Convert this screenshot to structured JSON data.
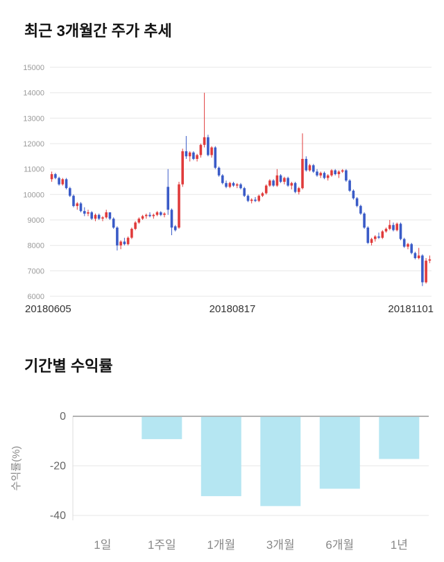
{
  "price_section": {
    "title": "최근 3개월간 주가 추세"
  },
  "returns_section": {
    "title": "기간별 수익률"
  },
  "chart_data": [
    {
      "type": "candlestick",
      "title": "최근 3개월간 주가 추세",
      "x_labels": [
        "20180605",
        "20180817",
        "20181101"
      ],
      "y_ticks": [
        6000,
        7000,
        8000,
        9000,
        10000,
        11000,
        12000,
        13000,
        14000,
        15000
      ],
      "ylim": [
        6000,
        15000
      ],
      "grid": true,
      "up_color": "#e03b3b",
      "down_color": "#3a5bc7",
      "grid_color": "#e7e7e7",
      "tick_color": "#999999",
      "xlabel_color": "#333333",
      "ohlc": [
        [
          10600,
          10900,
          10500,
          10800
        ],
        [
          10800,
          10850,
          10600,
          10650
        ],
        [
          10650,
          10700,
          10350,
          10400
        ],
        [
          10400,
          10650,
          10350,
          10600
        ],
        [
          10600,
          10650,
          10200,
          10250
        ],
        [
          10250,
          10300,
          9900,
          9950
        ],
        [
          9950,
          10000,
          9500,
          9550
        ],
        [
          9550,
          9700,
          9400,
          9650
        ],
        [
          9650,
          9700,
          9300,
          9350
        ],
        [
          9350,
          9500,
          9150,
          9250
        ],
        [
          9250,
          9400,
          9150,
          9300
        ],
        [
          9300,
          9350,
          9000,
          9050
        ],
        [
          9050,
          9250,
          8950,
          9200
        ],
        [
          9200,
          9250,
          9000,
          9050
        ],
        [
          9050,
          9150,
          8950,
          9100
        ],
        [
          9100,
          9400,
          9050,
          9300
        ],
        [
          9300,
          9300,
          9000,
          9050
        ],
        [
          9050,
          9100,
          8650,
          8700
        ],
        [
          8700,
          8750,
          7800,
          8000
        ],
        [
          8000,
          8200,
          7850,
          8150
        ],
        [
          8150,
          8300,
          8000,
          8050
        ],
        [
          8050,
          8350,
          8000,
          8300
        ],
        [
          8300,
          8700,
          8250,
          8650
        ],
        [
          8650,
          8950,
          8600,
          8900
        ],
        [
          8900,
          9100,
          8850,
          9050
        ],
        [
          9050,
          9200,
          9000,
          9150
        ],
        [
          9150,
          9250,
          9050,
          9200
        ],
        [
          9200,
          9300,
          9100,
          9150
        ],
        [
          9150,
          9250,
          9050,
          9200
        ],
        [
          9200,
          9350,
          9150,
          9300
        ],
        [
          9300,
          9350,
          9150,
          9200
        ],
        [
          9200,
          9300,
          9100,
          9250
        ],
        [
          10300,
          11000,
          9200,
          9400
        ],
        [
          9400,
          9450,
          8400,
          8700
        ],
        [
          8750,
          8800,
          8550,
          8600
        ],
        [
          8700,
          10500,
          8650,
          10400
        ],
        [
          10400,
          11800,
          10300,
          11700
        ],
        [
          11700,
          12300,
          11400,
          11500
        ],
        [
          11500,
          11700,
          11300,
          11650
        ],
        [
          11650,
          11700,
          11350,
          11400
        ],
        [
          11400,
          11600,
          11300,
          11550
        ],
        [
          11550,
          12000,
          11450,
          11950
        ],
        [
          11950,
          14000,
          11850,
          12250
        ],
        [
          12250,
          12350,
          11500,
          11550
        ],
        [
          11550,
          11900,
          11450,
          11850
        ],
        [
          11850,
          11900,
          11000,
          11050
        ],
        [
          11050,
          11100,
          10700,
          10750
        ],
        [
          10750,
          10800,
          10400,
          10450
        ],
        [
          10450,
          10550,
          10250,
          10300
        ],
        [
          10300,
          10500,
          10250,
          10450
        ],
        [
          10450,
          10500,
          10300,
          10350
        ],
        [
          10350,
          10450,
          10250,
          10400
        ],
        [
          10400,
          10450,
          10200,
          10250
        ],
        [
          10250,
          10300,
          9900,
          9950
        ],
        [
          9950,
          10000,
          9700,
          9750
        ],
        [
          9750,
          9850,
          9650,
          9800
        ],
        [
          9800,
          9900,
          9700,
          9750
        ],
        [
          9750,
          10000,
          9700,
          9950
        ],
        [
          9950,
          10100,
          9900,
          10050
        ],
        [
          10050,
          10400,
          10000,
          10350
        ],
        [
          10350,
          10600,
          10300,
          10550
        ],
        [
          10550,
          10600,
          10300,
          10350
        ],
        [
          10350,
          11000,
          10300,
          10750
        ],
        [
          10750,
          10800,
          10450,
          10500
        ],
        [
          10500,
          10700,
          10400,
          10650
        ],
        [
          10650,
          10700,
          10300,
          10350
        ],
        [
          10350,
          10500,
          10200,
          10450
        ],
        [
          10450,
          10500,
          10050,
          10100
        ],
        [
          10100,
          10300,
          10000,
          10250
        ],
        [
          10250,
          12400,
          10200,
          11400
        ],
        [
          11400,
          11500,
          10900,
          10950
        ],
        [
          10950,
          11200,
          10900,
          11150
        ],
        [
          11150,
          11200,
          10850,
          10900
        ],
        [
          10900,
          11000,
          10700,
          10750
        ],
        [
          10750,
          10900,
          10650,
          10850
        ],
        [
          10850,
          10900,
          10600,
          10650
        ],
        [
          10650,
          10800,
          10550,
          10750
        ],
        [
          10750,
          11000,
          10700,
          10950
        ],
        [
          10950,
          11000,
          10750,
          10800
        ],
        [
          10800,
          10950,
          10650,
          10900
        ],
        [
          10900,
          11000,
          10850,
          10950
        ],
        [
          10950,
          11000,
          10500,
          10550
        ],
        [
          10550,
          10600,
          10100,
          10150
        ],
        [
          10150,
          10200,
          9800,
          9850
        ],
        [
          9850,
          9900,
          9500,
          9550
        ],
        [
          9550,
          9600,
          9200,
          9250
        ],
        [
          9250,
          9300,
          8650,
          8700
        ],
        [
          8700,
          8750,
          8050,
          8100
        ],
        [
          8100,
          8300,
          8000,
          8250
        ],
        [
          8250,
          8400,
          8150,
          8350
        ],
        [
          8350,
          8500,
          8250,
          8300
        ],
        [
          8300,
          8600,
          8250,
          8550
        ],
        [
          8550,
          8700,
          8500,
          8650
        ],
        [
          8650,
          9000,
          8600,
          8800
        ],
        [
          8800,
          8900,
          8550,
          8600
        ],
        [
          8600,
          8900,
          8550,
          8850
        ],
        [
          8850,
          8900,
          8200,
          8250
        ],
        [
          8250,
          8300,
          7900,
          7950
        ],
        [
          7950,
          8100,
          7850,
          8050
        ],
        [
          8050,
          8100,
          7650,
          7700
        ],
        [
          7700,
          7750,
          7450,
          7500
        ],
        [
          7500,
          7900,
          7450,
          7600
        ],
        [
          7600,
          7650,
          6400,
          6550
        ],
        [
          6550,
          7500,
          6500,
          7400
        ],
        [
          7400,
          7600,
          7300,
          7450
        ]
      ]
    },
    {
      "type": "bar",
      "title": "기간별 수익률",
      "categories": [
        "1일",
        "1주일",
        "1개월",
        "3개월",
        "6개월",
        "1년"
      ],
      "values": [
        0,
        -9,
        -32,
        -36,
        -29,
        -17
      ],
      "xlabel": "",
      "ylabel": "수익률(%)",
      "y_ticks": [
        0,
        -20,
        -40
      ],
      "ylim": [
        -42,
        0
      ],
      "grid": true,
      "bar_color": "#b5e6f2",
      "zero_line_color": "#999999",
      "grid_color": "#e7e7e7",
      "tick_color": "#666666",
      "category_color": "#888888",
      "ylabel_color": "#888888"
    }
  ]
}
